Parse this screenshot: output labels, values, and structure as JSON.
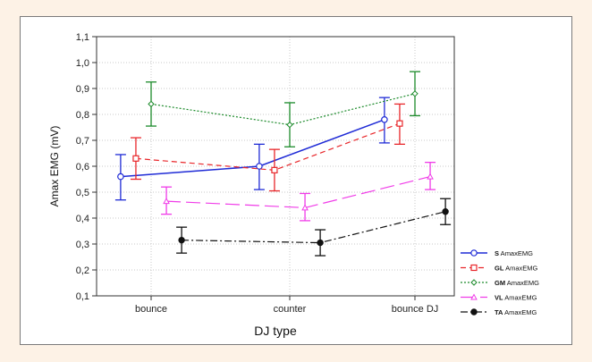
{
  "chart_data": {
    "type": "line",
    "xlabel": "DJ type",
    "ylabel": "Amax EMG (mV)",
    "categories": [
      "bounce",
      "counter",
      "bounce DJ"
    ],
    "ylim": [
      0.1,
      1.1
    ],
    "yticks": [
      "0,1",
      "0,2",
      "0,3",
      "0,4",
      "0,5",
      "0,6",
      "0,7",
      "0,8",
      "0,9",
      "1,0",
      "1,1"
    ],
    "grid": true,
    "legend_position": "bottom-right",
    "series": [
      {
        "name": "S AmaxEMG",
        "bold": "S",
        "rest": " AmaxEMG",
        "color": "#1f2bd6",
        "dash": "",
        "marker": "circle-open",
        "offset": -0.22,
        "values": [
          0.56,
          0.6,
          0.78
        ],
        "lower": [
          0.47,
          0.51,
          0.69
        ],
        "upper": [
          0.645,
          0.685,
          0.865
        ]
      },
      {
        "name": "GL AmaxEMG",
        "bold": "GL",
        "rest": " AmaxEMG",
        "color": "#e8262a",
        "dash": "6 4",
        "marker": "square-open",
        "offset": -0.11,
        "values": [
          0.63,
          0.585,
          0.765
        ],
        "lower": [
          0.55,
          0.505,
          0.685
        ],
        "upper": [
          0.71,
          0.665,
          0.84
        ]
      },
      {
        "name": "GM AmaxEMG",
        "bold": "GM",
        "rest": " AmaxEMG",
        "color": "#1b8a2a",
        "dash": "2 2",
        "marker": "diamond-open",
        "offset": 0.0,
        "values": [
          0.84,
          0.76,
          0.88
        ],
        "lower": [
          0.755,
          0.675,
          0.795
        ],
        "upper": [
          0.925,
          0.845,
          0.965
        ]
      },
      {
        "name": "VL AmaxEMG",
        "bold": "VL",
        "rest": " AmaxEMG",
        "color": "#f03ce8",
        "dash": "16 6",
        "marker": "triangle-open",
        "offset": 0.11,
        "values": [
          0.465,
          0.44,
          0.56
        ],
        "lower": [
          0.415,
          0.39,
          0.51
        ],
        "upper": [
          0.52,
          0.495,
          0.615
        ]
      },
      {
        "name": "TA AmaxEMG",
        "bold": "TA",
        "rest": " AmaxEMG",
        "color": "#111111",
        "dash": "8 3 2 3",
        "marker": "circle-filled",
        "offset": 0.22,
        "values": [
          0.315,
          0.305,
          0.425
        ],
        "lower": [
          0.265,
          0.255,
          0.375
        ],
        "upper": [
          0.365,
          0.355,
          0.475
        ]
      }
    ]
  }
}
